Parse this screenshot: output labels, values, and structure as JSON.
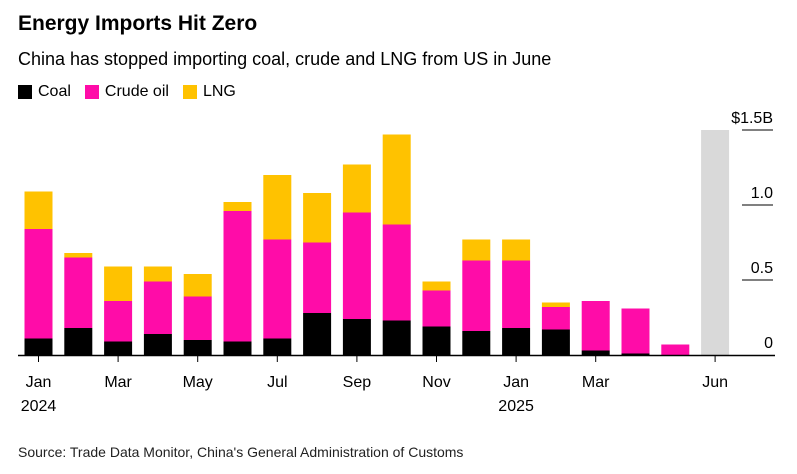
{
  "header": {
    "title": "Energy Imports Hit Zero",
    "subtitle": "China has stopped importing coal, crude and LNG from US in June"
  },
  "legend": [
    {
      "label": "Coal",
      "color": "#000000"
    },
    {
      "label": "Crude oil",
      "color": "#ff0ca8"
    },
    {
      "label": "LNG",
      "color": "#ffc200"
    }
  ],
  "source": "Source: Trade Data Monitor, China's General Administration of Customs",
  "chart_data": {
    "type": "bar",
    "stacked": true,
    "categories": [
      "2024-01",
      "2024-02",
      "2024-03",
      "2024-04",
      "2024-05",
      "2024-06",
      "2024-07",
      "2024-08",
      "2024-09",
      "2024-10",
      "2024-11",
      "2024-12",
      "2025-01",
      "2025-02",
      "2025-03",
      "2025-04",
      "2025-05",
      "2025-06"
    ],
    "series": [
      {
        "name": "Coal",
        "color": "#000000",
        "values": [
          0.11,
          0.18,
          0.09,
          0.14,
          0.1,
          0.09,
          0.11,
          0.28,
          0.24,
          0.23,
          0.19,
          0.16,
          0.18,
          0.17,
          0.03,
          0.01,
          0.0,
          0.0
        ]
      },
      {
        "name": "Crude oil",
        "color": "#ff0ca8",
        "values": [
          0.73,
          0.47,
          0.27,
          0.35,
          0.29,
          0.87,
          0.66,
          0.47,
          0.71,
          0.64,
          0.24,
          0.47,
          0.45,
          0.15,
          0.33,
          0.3,
          0.07,
          0.0
        ]
      },
      {
        "name": "LNG",
        "color": "#ffc200",
        "values": [
          0.25,
          0.03,
          0.23,
          0.1,
          0.15,
          0.06,
          0.43,
          0.33,
          0.32,
          0.6,
          0.06,
          0.14,
          0.14,
          0.03,
          0.0,
          0.0,
          0.0,
          0.0
        ]
      }
    ],
    "highlight": {
      "category": "2025-06",
      "color": "#d9d9d9",
      "value": 1.5
    },
    "x_tick_labels": [
      {
        "index": 0,
        "label": "Jan",
        "sublabel": "2024"
      },
      {
        "index": 2,
        "label": "Mar",
        "sublabel": ""
      },
      {
        "index": 4,
        "label": "May",
        "sublabel": ""
      },
      {
        "index": 6,
        "label": "Jul",
        "sublabel": ""
      },
      {
        "index": 8,
        "label": "Sep",
        "sublabel": ""
      },
      {
        "index": 10,
        "label": "Nov",
        "sublabel": ""
      },
      {
        "index": 12,
        "label": "Jan",
        "sublabel": "2025"
      },
      {
        "index": 14,
        "label": "Mar",
        "sublabel": ""
      },
      {
        "index": 17,
        "label": "Jun",
        "sublabel": ""
      }
    ],
    "y_ticks": [
      {
        "value": 0,
        "label": "0"
      },
      {
        "value": 0.5,
        "label": "0.5"
      },
      {
        "value": 1.0,
        "label": "1.0"
      },
      {
        "value": 1.5,
        "label": "$1.5B"
      }
    ],
    "ylim": [
      0,
      1.5
    ],
    "y_axis_side": "right",
    "legend_position": "top-left"
  }
}
